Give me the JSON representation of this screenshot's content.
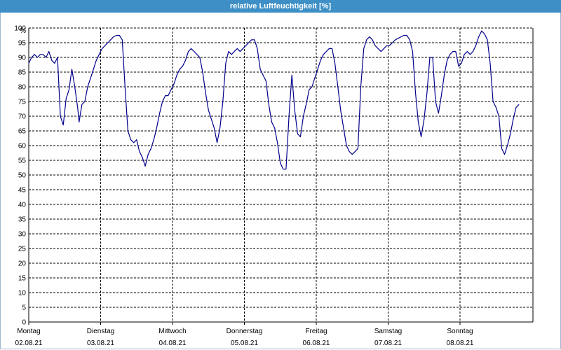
{
  "window": {
    "title": "relative Luftfeuchtigkeit [%]"
  },
  "chart_data": {
    "type": "line",
    "title": "relative Luftfeuchtigkeit [%]",
    "ylabel": "%",
    "ylim": [
      0,
      100
    ],
    "yticks": [
      0,
      5,
      10,
      15,
      20,
      25,
      30,
      35,
      40,
      45,
      50,
      55,
      60,
      65,
      70,
      75,
      80,
      85,
      90,
      95,
      100
    ],
    "grid": true,
    "line_color": "#00008b",
    "x_categories": [
      {
        "day": "Montag",
        "date": "02.08.21"
      },
      {
        "day": "Dienstag",
        "date": "03.08.21"
      },
      {
        "day": "Mittwoch",
        "date": "04.08.21"
      },
      {
        "day": "Donnerstag",
        "date": "05.08.21"
      },
      {
        "day": "Freitag",
        "date": "06.08.21"
      },
      {
        "day": "Samstag",
        "date": "07.08.21"
      },
      {
        "day": "Sonntag",
        "date": "08.08.21"
      }
    ],
    "series": [
      {
        "points": [
          [
            0.0,
            88
          ],
          [
            0.04,
            90
          ],
          [
            0.08,
            91
          ],
          [
            0.12,
            90
          ],
          [
            0.16,
            91
          ],
          [
            0.2,
            91
          ],
          [
            0.24,
            90
          ],
          [
            0.28,
            92
          ],
          [
            0.32,
            89
          ],
          [
            0.36,
            88
          ],
          [
            0.4,
            90
          ],
          [
            0.44,
            70
          ],
          [
            0.48,
            67
          ],
          [
            0.52,
            76
          ],
          [
            0.56,
            79
          ],
          [
            0.6,
            86
          ],
          [
            0.64,
            80
          ],
          [
            0.68,
            73
          ],
          [
            0.7,
            68
          ],
          [
            0.74,
            74
          ],
          [
            0.78,
            75
          ],
          [
            0.82,
            80
          ],
          [
            0.86,
            83
          ],
          [
            0.9,
            86
          ],
          [
            0.94,
            89
          ],
          [
            0.98,
            91
          ],
          [
            1.02,
            93
          ],
          [
            1.06,
            94
          ],
          [
            1.1,
            95
          ],
          [
            1.14,
            96
          ],
          [
            1.18,
            97
          ],
          [
            1.22,
            97.5
          ],
          [
            1.26,
            97.5
          ],
          [
            1.3,
            96
          ],
          [
            1.34,
            80
          ],
          [
            1.38,
            65
          ],
          [
            1.42,
            62
          ],
          [
            1.46,
            61
          ],
          [
            1.5,
            62
          ],
          [
            1.54,
            58
          ],
          [
            1.58,
            56
          ],
          [
            1.62,
            53
          ],
          [
            1.66,
            57
          ],
          [
            1.7,
            59
          ],
          [
            1.74,
            62
          ],
          [
            1.78,
            66
          ],
          [
            1.82,
            71
          ],
          [
            1.86,
            75
          ],
          [
            1.9,
            77
          ],
          [
            1.94,
            77
          ],
          [
            1.98,
            79
          ],
          [
            2.02,
            81
          ],
          [
            2.06,
            84
          ],
          [
            2.1,
            86
          ],
          [
            2.14,
            87
          ],
          [
            2.18,
            89
          ],
          [
            2.22,
            92
          ],
          [
            2.26,
            93
          ],
          [
            2.3,
            92
          ],
          [
            2.34,
            91
          ],
          [
            2.38,
            90
          ],
          [
            2.42,
            85
          ],
          [
            2.46,
            78
          ],
          [
            2.5,
            72
          ],
          [
            2.54,
            69
          ],
          [
            2.58,
            66
          ],
          [
            2.62,
            61
          ],
          [
            2.66,
            66
          ],
          [
            2.7,
            75
          ],
          [
            2.74,
            88
          ],
          [
            2.78,
            92
          ],
          [
            2.82,
            91
          ],
          [
            2.86,
            92
          ],
          [
            2.9,
            93
          ],
          [
            2.94,
            92
          ],
          [
            2.98,
            93
          ],
          [
            3.02,
            94
          ],
          [
            3.06,
            95
          ],
          [
            3.1,
            96
          ],
          [
            3.14,
            96
          ],
          [
            3.18,
            93
          ],
          [
            3.22,
            86
          ],
          [
            3.26,
            84
          ],
          [
            3.3,
            82
          ],
          [
            3.34,
            74
          ],
          [
            3.38,
            68
          ],
          [
            3.42,
            66
          ],
          [
            3.46,
            61
          ],
          [
            3.5,
            54
          ],
          [
            3.54,
            52
          ],
          [
            3.58,
            52
          ],
          [
            3.62,
            70
          ],
          [
            3.66,
            84
          ],
          [
            3.7,
            72
          ],
          [
            3.74,
            64
          ],
          [
            3.78,
            63
          ],
          [
            3.82,
            70
          ],
          [
            3.86,
            74
          ],
          [
            3.9,
            79
          ],
          [
            3.94,
            80
          ],
          [
            3.98,
            83
          ],
          [
            4.02,
            86
          ],
          [
            4.06,
            89
          ],
          [
            4.1,
            91
          ],
          [
            4.14,
            92
          ],
          [
            4.18,
            93
          ],
          [
            4.22,
            93
          ],
          [
            4.26,
            88
          ],
          [
            4.3,
            80
          ],
          [
            4.34,
            72
          ],
          [
            4.38,
            66
          ],
          [
            4.42,
            60
          ],
          [
            4.46,
            58
          ],
          [
            4.5,
            57
          ],
          [
            4.54,
            58
          ],
          [
            4.58,
            59
          ],
          [
            4.62,
            80
          ],
          [
            4.66,
            93
          ],
          [
            4.7,
            96
          ],
          [
            4.74,
            97
          ],
          [
            4.78,
            96
          ],
          [
            4.82,
            94
          ],
          [
            4.86,
            93
          ],
          [
            4.9,
            92
          ],
          [
            4.94,
            93
          ],
          [
            4.98,
            94
          ],
          [
            5.02,
            94
          ],
          [
            5.06,
            95
          ],
          [
            5.1,
            96
          ],
          [
            5.14,
            96.5
          ],
          [
            5.18,
            97
          ],
          [
            5.22,
            97.5
          ],
          [
            5.26,
            97.5
          ],
          [
            5.3,
            96
          ],
          [
            5.34,
            92
          ],
          [
            5.38,
            78
          ],
          [
            5.42,
            68
          ],
          [
            5.46,
            63
          ],
          [
            5.5,
            69
          ],
          [
            5.54,
            78
          ],
          [
            5.58,
            90
          ],
          [
            5.62,
            90
          ],
          [
            5.66,
            75
          ],
          [
            5.7,
            71
          ],
          [
            5.74,
            77
          ],
          [
            5.78,
            84
          ],
          [
            5.82,
            89
          ],
          [
            5.86,
            91
          ],
          [
            5.9,
            92
          ],
          [
            5.94,
            92
          ],
          [
            5.98,
            87
          ],
          [
            6.02,
            88
          ],
          [
            6.06,
            91
          ],
          [
            6.1,
            92
          ],
          [
            6.14,
            91
          ],
          [
            6.18,
            92
          ],
          [
            6.22,
            94
          ],
          [
            6.26,
            97
          ],
          [
            6.3,
            99
          ],
          [
            6.34,
            98
          ],
          [
            6.38,
            96
          ],
          [
            6.42,
            88
          ],
          [
            6.46,
            75
          ],
          [
            6.5,
            73
          ],
          [
            6.54,
            70
          ],
          [
            6.58,
            59
          ],
          [
            6.62,
            57
          ],
          [
            6.66,
            60
          ],
          [
            6.7,
            64
          ],
          [
            6.74,
            69
          ],
          [
            6.78,
            73
          ],
          [
            6.82,
            74
          ]
        ]
      }
    ]
  }
}
